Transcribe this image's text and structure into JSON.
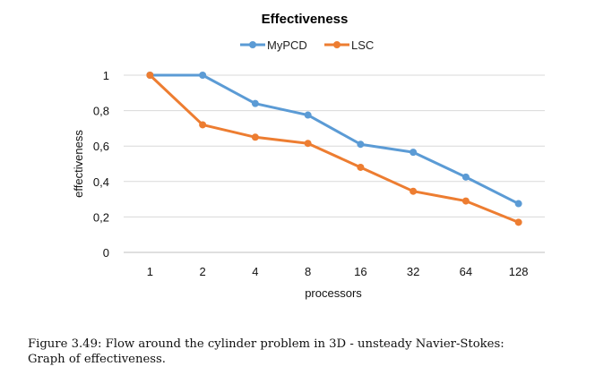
{
  "chart_data": {
    "type": "line",
    "title": "Effectiveness",
    "xlabel": "processors",
    "ylabel": "effectiveness",
    "categories": [
      "1",
      "2",
      "4",
      "8",
      "16",
      "32",
      "64",
      "128"
    ],
    "series": [
      {
        "name": "MyPCD",
        "color": "#5b9bd5",
        "values": [
          1.0,
          1.0,
          0.84,
          0.775,
          0.61,
          0.565,
          0.425,
          0.275
        ]
      },
      {
        "name": "LSC",
        "color": "#ed7d31",
        "values": [
          1.0,
          0.72,
          0.65,
          0.615,
          0.48,
          0.345,
          0.29,
          0.17
        ]
      }
    ],
    "ylim": [
      0,
      1
    ],
    "yticks": [
      "0",
      "0,2",
      "0,4",
      "0,6",
      "0,8",
      "1"
    ],
    "grid": true,
    "legend_position": "top"
  },
  "caption": {
    "line1": "Figure 3.49: Flow around the cylinder problem in 3D - unsteady Navier-Stokes:",
    "line2": "Graph of effectiveness."
  }
}
